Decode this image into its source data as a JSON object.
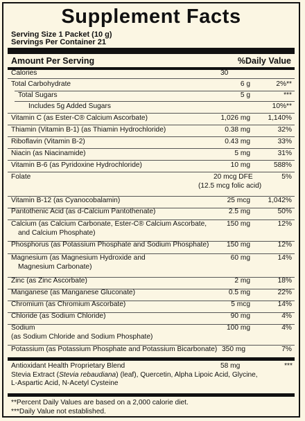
{
  "title": "Supplement Facts",
  "serving_size": "Serving Size 1 Packet (10 g)",
  "servings_per_container": "Servings Per Container 21",
  "header": {
    "left": "Amount Per Serving",
    "right": "%Daily Value"
  },
  "rows": [
    {
      "name": "Calories",
      "amount": "30",
      "dv": ""
    },
    {
      "name": "Total Carbohydrate",
      "amount": "6 g",
      "dv": "2%**"
    },
    {
      "name": "Total Sugars",
      "amount": "5 g",
      "dv": "***"
    },
    {
      "name": "Includes 5g Added Sugars",
      "amount": "",
      "dv": "10%**"
    },
    {
      "name": "Vitamin C (as Ester-C® Calcium Ascorbate)",
      "amount": "1,026 mg",
      "dv": "1,140%"
    },
    {
      "name": "Thiamin (Vitamin B-1) (as Thiamin Hydrochloride)",
      "amount": "0.38 mg",
      "dv": "32%"
    },
    {
      "name": "Riboflavin (Vitamin B-2)",
      "amount": "0.43 mg",
      "dv": "33%"
    },
    {
      "name": "Niacin (as Niacinamide)",
      "amount": "5 mg",
      "dv": "31%"
    },
    {
      "name": "Vitamin B-6 (as Pyridoxine Hydrochloride)",
      "amount": "10 mg",
      "dv": "588%"
    },
    {
      "name": "Folate",
      "amount": "20 mcg DFE",
      "amount2": "(12.5 mcg folic acid)",
      "dv": "5%"
    },
    {
      "name": "Vitamin B-12 (as Cyanocobalamin)",
      "amount": "25 mcg",
      "dv": "1,042%"
    },
    {
      "name": "Pantothenic Acid (as d-Calcium Pantothenate)",
      "amount": "2.5 mg",
      "dv": "50%"
    },
    {
      "name": "Calcium (as Calcium Carbonate, Ester-C® Calcium Ascorbate,",
      "name2": "and Calcium Phosphate)",
      "amount": "150 mg",
      "dv": "12%"
    },
    {
      "name": "Phosphorus (as Potassium Phosphate and Sodium Phosphate)",
      "amount": "150 mg",
      "dv": "12%"
    },
    {
      "name": "Magnesium (as Magnesium Hydroxide and",
      "name2": "Magnesium Carbonate)",
      "amount": "60 mg",
      "dv": "14%"
    },
    {
      "name": "Zinc (as Zinc Ascorbate)",
      "amount": "2 mg",
      "dv": "18%"
    },
    {
      "name": "Manganese (as Manganese Gluconate)",
      "amount": "0.5 mg",
      "dv": "22%"
    },
    {
      "name": "Chromium (as Chromium Ascorbate)",
      "amount": "5 mcg",
      "dv": "14%"
    },
    {
      "name": "Chloride (as Sodium Chloride)",
      "amount": "90 mg",
      "dv": "4%"
    },
    {
      "name": "Sodium",
      "name2": "(as Sodium Chloride and Sodium Phosphate)",
      "amount": "100 mg",
      "dv": "4%"
    },
    {
      "name": "Potassium (as Potassium Phosphate and Potassium Bicarbonate)",
      "amount": "350 mg",
      "dv": "7%"
    }
  ],
  "blend": {
    "name": "Antioxidant Health Proprietary Blend",
    "amount": "58 mg",
    "dv": "***",
    "line2_a": "Stevia Extract (",
    "line2_italic": "Stevia rebaudiana",
    "line2_b": ") (leaf), Quercetin, Alpha Lipoic Acid, Glycine,",
    "line3": "L-Aspartic Acid, N-Acetyl Cysteine"
  },
  "footnotes": [
    "**Percent Daily Values are based on a 2,000 calorie diet.",
    "***Daily Value not established."
  ]
}
